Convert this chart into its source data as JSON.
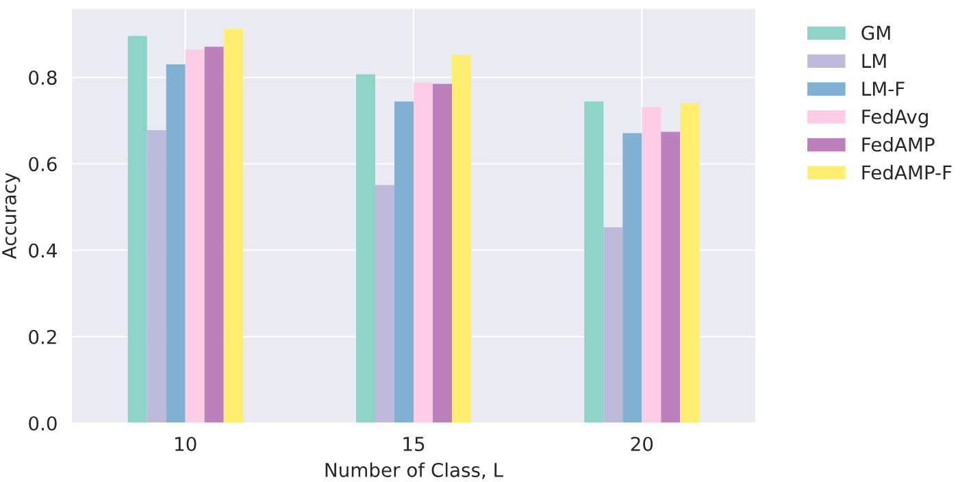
{
  "chart_data": {
    "type": "bar",
    "xlabel": "Number of Class, L",
    "ylabel": "Accuracy",
    "categories": [
      "10",
      "15",
      "20"
    ],
    "series": [
      {
        "name": "GM",
        "color": "#8dd3c7",
        "values": [
          0.896,
          0.807,
          0.744
        ]
      },
      {
        "name": "LM",
        "color": "#bebada",
        "values": [
          0.678,
          0.551,
          0.453
        ]
      },
      {
        "name": "LM-F",
        "color": "#80b1d3",
        "values": [
          0.83,
          0.744,
          0.671
        ]
      },
      {
        "name": "FedAvg",
        "color": "#fccde5",
        "values": [
          0.864,
          0.788,
          0.731
        ]
      },
      {
        "name": "FedAMP",
        "color": "#bc80bd",
        "values": [
          0.871,
          0.785,
          0.674
        ]
      },
      {
        "name": "FedAMP-F",
        "color": "#ffed6f",
        "values": [
          0.912,
          0.852,
          0.74
        ]
      }
    ],
    "ylim": [
      0,
      0.96
    ],
    "yticks": [
      {
        "value": 0,
        "label": "0.0"
      },
      0.2,
      0.4,
      0.6,
      0.8
    ],
    "grid": true,
    "legend": "top right"
  }
}
